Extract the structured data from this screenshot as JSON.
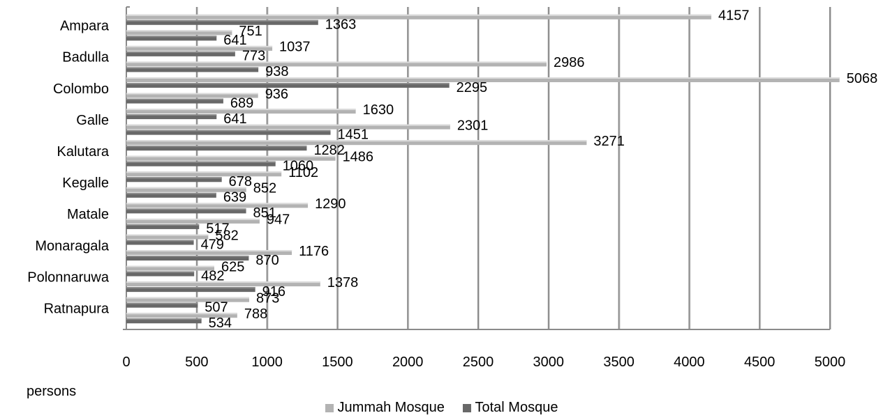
{
  "chart_data": {
    "type": "bar",
    "orientation": "horizontal",
    "x_axis_label": "persons",
    "xlim": [
      0,
      5000
    ],
    "x_ticks": [
      "0",
      "500",
      "1000",
      "1500",
      "2000",
      "2500",
      "3000",
      "3500",
      "4000",
      "4500",
      "5000"
    ],
    "category_labels": [
      "Ratnapura",
      "Polonnaruwa",
      "Monaragala",
      "Matale",
      "Kegalle",
      "Kalutara",
      "Galle",
      "Colombo",
      "Badulla",
      "Ampara"
    ],
    "categories": [
      "",
      "Ratnapura",
      "",
      "Polonnaruwa",
      "",
      "Monaragala",
      "",
      "Matale",
      "",
      "Kegalle",
      "",
      "Kalutara",
      "",
      "Galle",
      "",
      "Colombo",
      "",
      "Badulla",
      "",
      "Ampara"
    ],
    "series": [
      {
        "name": "Jummah Mosque",
        "color": "#b3b3b3",
        "values": [
          788,
          873,
          1378,
          625,
          1176,
          582,
          947,
          1290,
          852,
          1102,
          1486,
          3271,
          2301,
          1630,
          936,
          5068,
          2986,
          1037,
          751,
          4157
        ]
      },
      {
        "name": "Total  Mosque",
        "color": "#686868",
        "values": [
          534,
          507,
          916,
          482,
          870,
          479,
          517,
          851,
          639,
          678,
          1060,
          1282,
          1451,
          641,
          689,
          2295,
          938,
          773,
          641,
          1363
        ]
      }
    ],
    "grid": true,
    "legend_position": "bottom"
  }
}
